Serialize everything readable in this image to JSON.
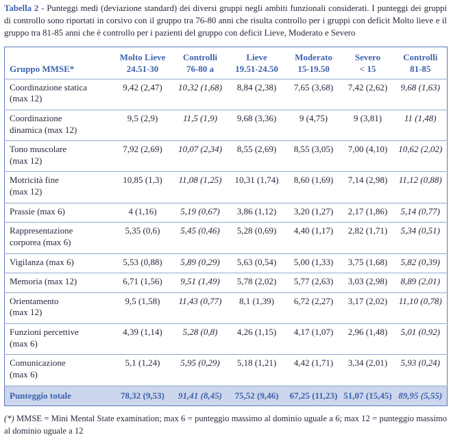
{
  "caption": {
    "label": "Tabella 2",
    "text": " - Punteggi medi (deviazione standard) dei diversi gruppi negli ambiti funzionali considerati. I punteggi dei gruppi di controllo sono riportati in corsivo con il gruppo tra 76-80 anni che risulta controllo per i gruppi con deficit Molto lieve e il gruppo tra 81-85 anni che è controllo per i pazienti del gruppo con deficit Lieve, Moderato e Severo"
  },
  "table": {
    "corner_header": "Gruppo MMSE*",
    "columns": [
      {
        "line1": "Molto Lieve",
        "line2": "24.51-30",
        "italic": false
      },
      {
        "line1": "Controlli",
        "line2": "76-80 a",
        "italic": true
      },
      {
        "line1": "Lieve",
        "line2": "19.51-24.50",
        "italic": false
      },
      {
        "line1": "Moderato",
        "line2": "15-19.50",
        "italic": false
      },
      {
        "line1": "Severo",
        "line2": "< 15",
        "italic": false
      },
      {
        "line1": "Controlli",
        "line2": "81-85",
        "italic": true
      }
    ],
    "rows": [
      {
        "label": "Coordinazione statica\n(max 12)",
        "values": [
          "9,42 (2,47)",
          "10,32 (1,68)",
          "8,84 (2,38)",
          "7,65 (3,68)",
          "7,42 (2,62)",
          "9,68 (1,63)"
        ]
      },
      {
        "label": "Coordinazione\ndinamica (max 12)",
        "values": [
          "9,5 (2,9)",
          "11,5 (1,9)",
          "9,68 (3,36)",
          "9 (4,75)",
          "9 (3,81)",
          "11 (1,48)"
        ]
      },
      {
        "label": "Tono muscolare\n(max 12)",
        "values": [
          "7,92 (2,69)",
          "10,07 (2,34)",
          "8,55 (2,69)",
          "8,55 (3,05)",
          "7,00 (4,10)",
          "10,62 (2,02)"
        ]
      },
      {
        "label": "Motricità fine\n(max 12)",
        "values": [
          "10,85 (1,3)",
          "11,08 (1,25)",
          "10,31 (1,74)",
          "8,60 (1,69)",
          "7,14 (2,98)",
          "11,12 (0,88)"
        ]
      },
      {
        "label": "Prassie (max 6)",
        "values": [
          "4 (1,16)",
          "5,19 (0,67)",
          "3,86 (1,12)",
          "3,20 (1,27)",
          "2,17 (1,86)",
          "5,14 (0,77)"
        ]
      },
      {
        "label": "Rappresentazione\ncorporea (max 6)",
        "values": [
          "5,35 (0,6)",
          "5,45 (0,46)",
          "5,28 (0,69)",
          "4,40 (1,17)",
          "2,82 (1,71)",
          "5,34 (0,51)"
        ]
      },
      {
        "label": "Vigilanza (max 6)",
        "values": [
          "5,53 (0,88)",
          "5,89 (0,29)",
          "5,63 (0,54)",
          "5,00 (1,33)",
          "3,75 (1,68)",
          "5,82 (0,39)"
        ]
      },
      {
        "label": "Memoria (max 12)",
        "values": [
          "6,71 (1,56)",
          "9,51 (1,49)",
          "5,78 (2,02)",
          "5,77 (2,63)",
          "3,03 (2,98)",
          "8,89 (2,01)"
        ]
      },
      {
        "label": "Orientamento\n(max 12)",
        "values": [
          "9,5 (1,58)",
          "11,43 (0,77)",
          "8,1 (1,39)",
          "6,72 (2,27)",
          "3,17 (2,02)",
          "11,10 (0,78)"
        ]
      },
      {
        "label": "Funzioni percettive\n(max 6)",
        "values": [
          "4,39 (1,14)",
          "5,28 (0,8)",
          "4,26 (1,15)",
          "4,17 (1,07)",
          "2,96 (1,48)",
          "5,01 (0,92)"
        ]
      },
      {
        "label": "Comunicazione\n(max 6)",
        "values": [
          "5,1 (1,24)",
          "5,95 (0,29)",
          "5,18 (1,21)",
          "4,42 (1,71)",
          "3,34 (2,01)",
          "5,93 (0,24)"
        ]
      }
    ],
    "total_row": {
      "label": "Punteggio totale",
      "values": [
        "78,32 (9,53)",
        "91,41 (8,45)",
        "75,52 (9,46)",
        "67,25 (11,23)",
        "51,07 (15,45)",
        "89,95 (5,55)"
      ]
    }
  },
  "footnote": {
    "marker": "(*)",
    "text": " MMSE = Mini Mental State examination; max 6 = punteggio massimo al dominio uguale a 6; max 12 = punteggio massimo al dominio uguale a 12"
  },
  "colors": {
    "accent_blue": "#3d62ae",
    "table_border": "#5b77b5",
    "row_separator": "#93a7d2",
    "total_row_background": "#ccd6ec",
    "body_text": "#26263c"
  }
}
